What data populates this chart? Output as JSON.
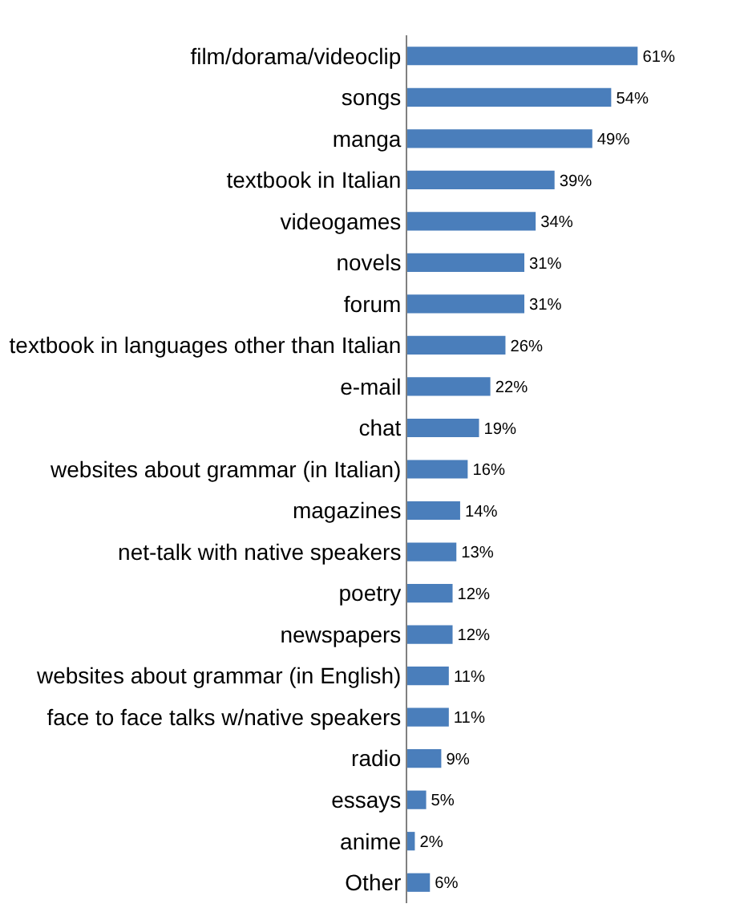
{
  "chart_data": {
    "type": "bar",
    "orientation": "horizontal",
    "color": "#4a7ebb",
    "categories": [
      "film/dorama/videoclip",
      "songs",
      "manga",
      "textbook in Italian",
      "videogames",
      "novels",
      "forum",
      "textbook in languages other than Italian",
      "e-mail",
      "chat",
      "websites about grammar (in Italian)",
      "magazines",
      "net-talk with native speakers",
      "poetry",
      "newspapers",
      "websites about grammar (in English)",
      "face to face talks w/native speakers",
      "radio",
      "essays",
      "anime",
      "Other"
    ],
    "values": [
      61,
      54,
      49,
      39,
      34,
      31,
      31,
      26,
      22,
      19,
      16,
      14,
      13,
      12,
      12,
      11,
      11,
      9,
      5,
      2,
      6
    ],
    "value_labels": [
      "61%",
      "54%",
      "49%",
      "39%",
      "34%",
      "31%",
      "31%",
      "26%",
      "22%",
      "19%",
      "16%",
      "14%",
      "13%",
      "12%",
      "12%",
      "11%",
      "11%",
      "9%",
      "5%",
      "2%",
      "6%"
    ],
    "tick_labels": "y",
    "legend": false
  }
}
